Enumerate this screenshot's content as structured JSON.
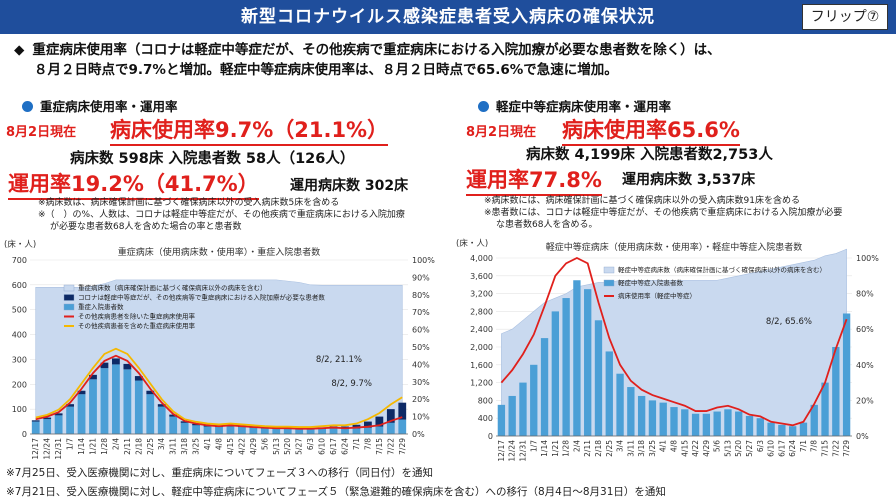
{
  "header": {
    "title": "新型コロナウイルス感染症患者受入病床の確保状況",
    "flip_label": "フリップ⑦"
  },
  "intro": {
    "marker": "◆",
    "line1": "重症病床使用率（コロナは軽症中等症だが、その他疾病で重症病床における入院加療が必要な患者数を除く）は、",
    "line2": "８月２日時点で9.7%と増加。軽症中等症病床使用率は、８月２日時点で65.6%で急速に増加。"
  },
  "left": {
    "heading": "重症病床使用率・運用率",
    "date_label": "8月2日現在",
    "usage_rate": "病床使用率9.7%（21.1%）",
    "beds_line": "病床数 598床  入院患者数  58人（126人）",
    "op_rate": "運用率19.2%（41.7%）",
    "op_beds": "運用病床数 302床",
    "note1": "※病床数は、病床確保計画に基づく確保病床以外の受入病床数5床を含める",
    "note2": "※（　）の%、人数は、コロナは軽症中等症だが、その他疾病で重症病床における入院加療",
    "note3": "が必要な患者数68人を含めた場合の率と患者数"
  },
  "right": {
    "heading": "軽症中等症病床使用率・運用率",
    "date_label": "8月2日現在",
    "usage_rate": "病床使用率65.6%",
    "beds_line": "病床数 4,199床  入院患者数2,753人",
    "op_rate": "運用率77.8%",
    "op_beds": "運用病床数 3,537床",
    "note1": "※病床数には、病床確保計画に基づく確保病床以外の受入病床数91床を含める",
    "note2": "※患者数には、コロナは軽症中等症だが、その他疾病で重症病床における入院加療が必要",
    "note3": "な患者数68人を含める。"
  },
  "footer": {
    "line1": "※7月25日、受入医療機関に対し、重症病床についてフェーズ３への移行（同日付）を通知",
    "line2": "※7月21日、受入医療機関に対し、軽症中等症病床についてフェーズ５（緊急避難的確保病床を含む）への移行（8月4日～8月31日）を通知"
  },
  "colors": {
    "banner": "#1f4e9c",
    "accent_red": "#e0201c",
    "area_fill": "#c9d9ef",
    "bar_dark": "#0d2a66",
    "bar_light": "#4b9fd6",
    "line_red": "#e0201c",
    "line_yellow": "#f5b800"
  },
  "chart_data": [
    {
      "type": "bar",
      "title": "重症病床（使用病床数・使用率）・重症入院患者数",
      "y_unit": "(床・人)",
      "ylim": [
        0,
        700
      ],
      "y_ticks": [
        0,
        100,
        200,
        300,
        400,
        500,
        600,
        700
      ],
      "y2lim": [
        0,
        100
      ],
      "y2_ticks": [
        "0%",
        "10%",
        "20%",
        "30%",
        "40%",
        "50%",
        "60%",
        "70%",
        "80%",
        "90%",
        "100%"
      ],
      "x_ticks": [
        "12/17",
        "12/24",
        "12/31",
        "1/7",
        "1/14",
        "1/21",
        "1/28",
        "2/4",
        "2/11",
        "2/18",
        "2/25",
        "3/4",
        "3/11",
        "3/18",
        "3/25",
        "4/1",
        "4/8",
        "4/15",
        "4/22",
        "4/29",
        "5/6",
        "5/13",
        "5/20",
        "5/27",
        "6/3",
        "6/10",
        "6/17",
        "6/24",
        "7/1",
        "7/8",
        "7/15",
        "7/22",
        "7/29"
      ],
      "legend": [
        "重症病床数（病床確保計画に基づく確保病床以外の病床を含む）",
        "コロナは軽症中等症だが、その他疾病等で重症病床における入院加療が必要な患者数",
        "重症入院患者数",
        "その他疾病患者を除いた重症病床使用率",
        "その他疾病患者を含めた重症病床使用率"
      ],
      "annotations": [
        "8/2, 21.1%",
        "8/2, 9.7%"
      ],
      "series": [
        {
          "name": "重症病床数（病床確保計画に基づく確保病床以外の病床を含む）",
          "kind": "area",
          "values": [
            590,
            590,
            590,
            590,
            590,
            595,
            605,
            620,
            620,
            620,
            620,
            620,
            620,
            620,
            620,
            620,
            620,
            620,
            620,
            620,
            620,
            620,
            615,
            610,
            600,
            598,
            598,
            598,
            598,
            598,
            598,
            598,
            598
          ]
        },
        {
          "name": "重症入院患者数",
          "kind": "bar",
          "values": [
            50,
            60,
            75,
            110,
            160,
            220,
            265,
            280,
            260,
            215,
            160,
            110,
            70,
            45,
            35,
            30,
            28,
            30,
            28,
            25,
            22,
            20,
            20,
            18,
            18,
            20,
            22,
            20,
            22,
            25,
            30,
            45,
            58
          ]
        },
        {
          "name": "コロナは軽症中等症だが、その他疾病等で重症病床における入院加療が必要な患者数",
          "kind": "bar_stack",
          "values": [
            5,
            6,
            8,
            10,
            14,
            18,
            22,
            24,
            22,
            18,
            14,
            10,
            8,
            6,
            6,
            5,
            5,
            5,
            5,
            5,
            5,
            5,
            5,
            5,
            5,
            6,
            8,
            10,
            15,
            25,
            40,
            55,
            68
          ]
        },
        {
          "name": "その他疾病患者を除いた重症病床使用率",
          "kind": "line_pct",
          "values": [
            8.5,
            10,
            12.5,
            18,
            26,
            35,
            42,
            45,
            42,
            35,
            26,
            18,
            11.5,
            7.5,
            6,
            5,
            4.5,
            5,
            4.5,
            4,
            3.6,
            3.3,
            3.3,
            3,
            3,
            3.3,
            3.7,
            3.3,
            3.7,
            4.2,
            5,
            7.5,
            9.7
          ]
        },
        {
          "name": "その他疾病患者を含めた重症病床使用率",
          "kind": "line_pct",
          "values": [
            9.5,
            11,
            14,
            20,
            29,
            38,
            46,
            49,
            46,
            38,
            29,
            20,
            13,
            8.5,
            7,
            6,
            5.5,
            6,
            5.5,
            5,
            4.5,
            4.2,
            4.2,
            4,
            4,
            4.5,
            5,
            5,
            6,
            8.5,
            12,
            17,
            21.1
          ]
        }
      ]
    },
    {
      "type": "bar",
      "title": "軽症中等症病床（使用病床数・使用率）・軽症中等症入院患者数",
      "y_unit": "(床・人)",
      "ylim": [
        0,
        4000
      ],
      "y_ticks": [
        0,
        400,
        800,
        1200,
        1600,
        2000,
        2400,
        2800,
        3200,
        3600,
        4000
      ],
      "y2lim": [
        0,
        100
      ],
      "y2_ticks": [
        "0%",
        "20%",
        "40%",
        "60%",
        "80%",
        "100%"
      ],
      "x_ticks": [
        "12/17",
        "12/24",
        "12/31",
        "1/7",
        "1/14",
        "1/21",
        "1/28",
        "2/4",
        "2/11",
        "2/18",
        "2/25",
        "3/4",
        "3/11",
        "3/18",
        "3/25",
        "4/1",
        "4/8",
        "4/15",
        "4/22",
        "4/29",
        "5/6",
        "5/13",
        "5/20",
        "5/27",
        "6/3",
        "6/10",
        "6/17",
        "6/24",
        "7/1",
        "7/8",
        "7/15",
        "7/22",
        "7/29"
      ],
      "legend": [
        "軽症中等症病床数（病床確保計画に基づく確保病床以外の病床を含む）",
        "軽症中等症入院患者数",
        "病床使用率（軽症中等症）"
      ],
      "annotations": [
        "8/2, 65.6%"
      ],
      "series": [
        {
          "name": "軽症中等症病床数（病床確保計画に基づく確保病床以外の病床を含む）",
          "kind": "area",
          "values": [
            2300,
            2400,
            2600,
            2800,
            3000,
            3100,
            3200,
            3350,
            3400,
            3450,
            3450,
            3500,
            3500,
            3500,
            3500,
            3500,
            3500,
            3500,
            3500,
            3500,
            3500,
            3550,
            3600,
            3650,
            3700,
            3750,
            3800,
            3850,
            3900,
            3950,
            4050,
            4100,
            4199
          ]
        },
        {
          "name": "軽症中等症入院患者数",
          "kind": "bar",
          "values": [
            700,
            900,
            1200,
            1600,
            2200,
            2800,
            3100,
            3500,
            3300,
            2600,
            1900,
            1400,
            1100,
            900,
            800,
            750,
            650,
            600,
            500,
            500,
            550,
            600,
            550,
            450,
            400,
            300,
            250,
            220,
            300,
            700,
            1200,
            2000,
            2753
          ]
        },
        {
          "name": "病床使用率（軽症中等症）",
          "kind": "line_pct",
          "values": [
            30,
            37,
            46,
            57,
            73,
            90,
            97,
            100,
            97,
            75,
            55,
            40,
            31,
            26,
            23,
            21,
            19,
            17,
            14,
            14,
            16,
            17,
            15,
            12,
            11,
            8,
            7,
            6,
            8,
            18,
            30,
            49,
            65.6
          ]
        }
      ]
    }
  ]
}
